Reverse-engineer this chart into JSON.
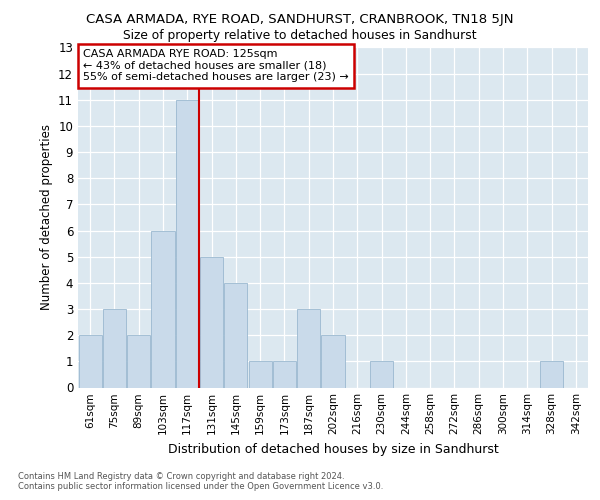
{
  "title": "CASA ARMADA, RYE ROAD, SANDHURST, CRANBROOK, TN18 5JN",
  "subtitle": "Size of property relative to detached houses in Sandhurst",
  "xlabel": "Distribution of detached houses by size in Sandhurst",
  "ylabel": "Number of detached properties",
  "categories": [
    "61sqm",
    "75sqm",
    "89sqm",
    "103sqm",
    "117sqm",
    "131sqm",
    "145sqm",
    "159sqm",
    "173sqm",
    "187sqm",
    "202sqm",
    "216sqm",
    "230sqm",
    "244sqm",
    "258sqm",
    "272sqm",
    "286sqm",
    "300sqm",
    "314sqm",
    "328sqm",
    "342sqm"
  ],
  "values": [
    2,
    3,
    2,
    6,
    11,
    5,
    4,
    1,
    1,
    3,
    2,
    0,
    1,
    0,
    0,
    0,
    0,
    0,
    0,
    1,
    0
  ],
  "bar_color": "#c9daea",
  "bar_edge_color": "#9ab8d0",
  "vline_x": 4.5,
  "annotation_line1": "CASA ARMADA RYE ROAD: 125sqm",
  "annotation_line2": "← 43% of detached houses are smaller (18)",
  "annotation_line3": "55% of semi-detached houses are larger (23) →",
  "annotation_box_color": "#ffffff",
  "annotation_box_edge": "#cc0000",
  "vline_color": "#cc0000",
  "ylim": [
    0,
    13
  ],
  "yticks": [
    0,
    1,
    2,
    3,
    4,
    5,
    6,
    7,
    8,
    9,
    10,
    11,
    12,
    13
  ],
  "footer_line1": "Contains HM Land Registry data © Crown copyright and database right 2024.",
  "footer_line2": "Contains public sector information licensed under the Open Government Licence v3.0.",
  "fig_bg_color": "#ffffff",
  "plot_bg_color": "#dce8f0"
}
